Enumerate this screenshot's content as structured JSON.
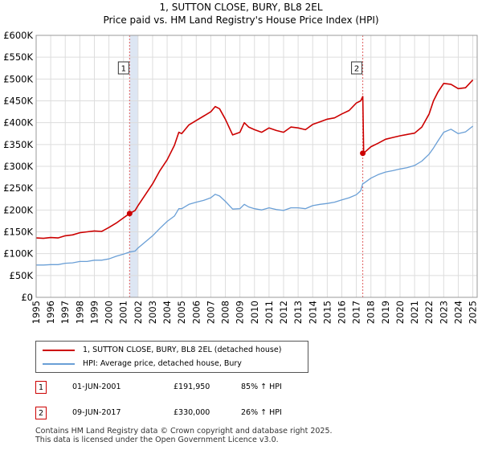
{
  "title_line1": "1, SUTTON CLOSE, BURY, BL8 2EL",
  "title_line2": "Price paid vs. HM Land Registry's House Price Index (HPI)",
  "colors": {
    "property": "#cc0000",
    "hpi": "#6a9fd6",
    "highlight": "#dde6f3",
    "grid": "#dddddd",
    "marker_line": "#e06060"
  },
  "chart_data": {
    "type": "line",
    "title": "Price paid vs. HM Land Registry's House Price Index (HPI)",
    "xlabel": "",
    "ylabel": "",
    "xlim": [
      1995,
      2025.3
    ],
    "ylim": [
      0,
      600000
    ],
    "y_ticks": [
      {
        "value": 0,
        "label": "£0"
      },
      {
        "value": 50000,
        "label": "£50K"
      },
      {
        "value": 100000,
        "label": "£100K"
      },
      {
        "value": 150000,
        "label": "£150K"
      },
      {
        "value": 200000,
        "label": "£200K"
      },
      {
        "value": 250000,
        "label": "£250K"
      },
      {
        "value": 300000,
        "label": "£300K"
      },
      {
        "value": 350000,
        "label": "£350K"
      },
      {
        "value": 400000,
        "label": "£400K"
      },
      {
        "value": 450000,
        "label": "£450K"
      },
      {
        "value": 500000,
        "label": "£500K"
      },
      {
        "value": 550000,
        "label": "£550K"
      },
      {
        "value": 600000,
        "label": "£600K"
      }
    ],
    "x_ticks": [
      "1995",
      "1996",
      "1997",
      "1998",
      "1999",
      "2000",
      "2001",
      "2002",
      "2003",
      "2004",
      "2005",
      "2006",
      "2007",
      "2008",
      "2009",
      "2010",
      "2011",
      "2012",
      "2013",
      "2014",
      "2015",
      "2016",
      "2017",
      "2018",
      "2019",
      "2020",
      "2021",
      "2022",
      "2023",
      "2024",
      "2025"
    ],
    "highlight_ranges": [
      [
        2001.42,
        2002.0
      ]
    ],
    "series": [
      {
        "name": "1, SUTTON CLOSE, BURY, BL8 2EL (detached house)",
        "color": "#cc0000",
        "x": [
          1995,
          1995.5,
          1996,
          1996.5,
          1997,
          1997.5,
          1998,
          1998.5,
          1999,
          1999.5,
          2000,
          2000.5,
          2001,
          2001.42,
          2001.8,
          2002,
          2002.5,
          2003,
          2003.5,
          2004,
          2004.5,
          2004.8,
          2005,
          2005.5,
          2006,
          2006.5,
          2007,
          2007.3,
          2007.6,
          2008,
          2008.5,
          2009,
          2009.3,
          2009.6,
          2010,
          2010.5,
          2011,
          2011.5,
          2012,
          2012.5,
          2013,
          2013.5,
          2014,
          2014.5,
          2015,
          2015.5,
          2016,
          2016.5,
          2017,
          2017.3,
          2017.44,
          2017.5,
          2018,
          2018.5,
          2019,
          2019.5,
          2020,
          2020.5,
          2021,
          2021.5,
          2022,
          2022.3,
          2022.6,
          2023,
          2023.5,
          2024,
          2024.5,
          2025
        ],
        "values": [
          136000,
          135000,
          137000,
          136000,
          141000,
          143000,
          148000,
          150000,
          152000,
          151000,
          160000,
          170000,
          182000,
          191950,
          199000,
          210000,
          235000,
          260000,
          290000,
          315000,
          348000,
          378000,
          375000,
          395000,
          405000,
          415000,
          425000,
          437000,
          432000,
          408000,
          372000,
          378000,
          400000,
          390000,
          384000,
          378000,
          388000,
          382000,
          378000,
          390000,
          388000,
          384000,
          396000,
          402000,
          408000,
          411000,
          420000,
          428000,
          445000,
          450000,
          460000,
          330000,
          345000,
          353000,
          362000,
          366000,
          370000,
          373000,
          376000,
          390000,
          420000,
          450000,
          470000,
          490000,
          488000,
          478000,
          480000,
          498000
        ]
      },
      {
        "name": "HPI: Average price, detached house, Bury",
        "color": "#6a9fd6",
        "x": [
          1995,
          1995.5,
          1996,
          1996.5,
          1997,
          1997.5,
          1998,
          1998.5,
          1999,
          1999.5,
          2000,
          2000.5,
          2001,
          2001.42,
          2001.8,
          2002,
          2002.5,
          2003,
          2003.5,
          2004,
          2004.5,
          2004.8,
          2005,
          2005.5,
          2006,
          2006.5,
          2007,
          2007.3,
          2007.6,
          2008,
          2008.5,
          2009,
          2009.3,
          2009.6,
          2010,
          2010.5,
          2011,
          2011.5,
          2012,
          2012.5,
          2013,
          2013.5,
          2014,
          2014.5,
          2015,
          2015.5,
          2016,
          2016.5,
          2017,
          2017.3,
          2017.44,
          2017.5,
          2018,
          2018.5,
          2019,
          2019.5,
          2020,
          2020.5,
          2021,
          2021.5,
          2022,
          2022.3,
          2022.6,
          2023,
          2023.5,
          2024,
          2024.5,
          2025
        ],
        "values": [
          74000,
          74000,
          75000,
          75000,
          78000,
          79000,
          82000,
          82000,
          85000,
          85000,
          88000,
          94000,
          99000,
          103700,
          106000,
          113000,
          127000,
          141000,
          158000,
          174000,
          186000,
          203000,
          203000,
          213000,
          218000,
          222000,
          228000,
          236000,
          232000,
          220000,
          202000,
          203000,
          213000,
          207000,
          203000,
          200000,
          205000,
          201000,
          199000,
          205000,
          205000,
          203000,
          210000,
          213000,
          215000,
          218000,
          223000,
          228000,
          235000,
          244000,
          261000,
          261000,
          273000,
          281000,
          287000,
          290000,
          294000,
          297000,
          302000,
          312000,
          328000,
          342000,
          358000,
          378000,
          385000,
          375000,
          379000,
          392000
        ]
      }
    ],
    "sales": [
      {
        "label": "1",
        "x": 2001.42,
        "value": 191950
      },
      {
        "label": "2",
        "x": 2017.44,
        "value": 330000
      }
    ]
  },
  "legend": [
    {
      "label": "1, SUTTON CLOSE, BURY, BL8 2EL (detached house)",
      "color": "#cc0000"
    },
    {
      "label": "HPI: Average price, detached house, Bury",
      "color": "#6a9fd6"
    }
  ],
  "sales_table": [
    {
      "num": "1",
      "date": "01-JUN-2001",
      "price": "£191,950",
      "hpi": "85% ↑ HPI"
    },
    {
      "num": "2",
      "date": "09-JUN-2017",
      "price": "£330,000",
      "hpi": "26% ↑ HPI"
    }
  ],
  "footer_line1": "Contains HM Land Registry data © Crown copyright and database right 2025.",
  "footer_line2": "This data is licensed under the Open Government Licence v3.0."
}
